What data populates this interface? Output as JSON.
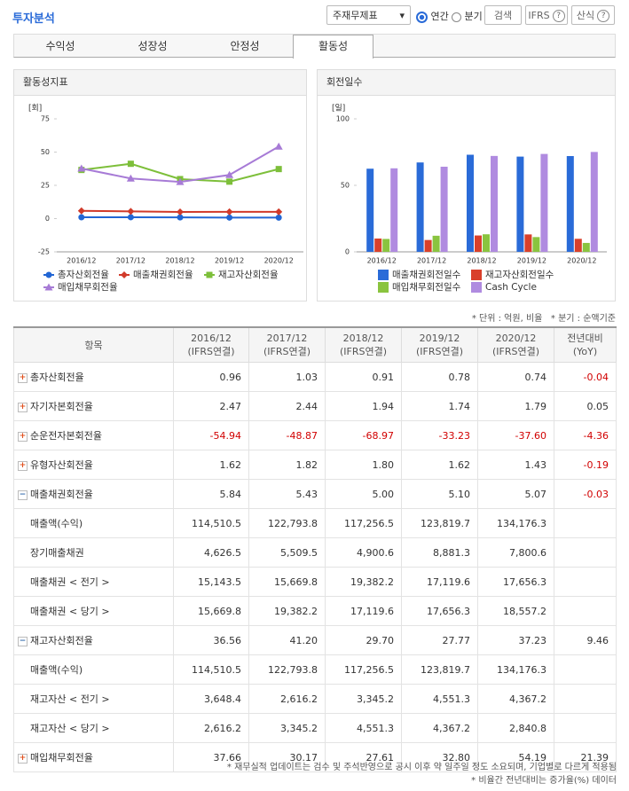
{
  "header": {
    "title": "투자분석",
    "select": "주재무제표",
    "radio_annual": "연간",
    "radio_quarter": "분기",
    "search": "검색",
    "ifrs": "IFRS",
    "formula": "산식"
  },
  "tabs": [
    "수익성",
    "성장성",
    "안정성",
    "활동성"
  ],
  "active_tab": 3,
  "chart_data": [
    {
      "type": "line",
      "title": "활동성지표",
      "unit": "[회]",
      "categories": [
        "2016/12",
        "2017/12",
        "2018/12",
        "2019/12",
        "2020/12"
      ],
      "series": [
        {
          "name": "총자산회전율",
          "color": "#2266d4",
          "marker": "circle",
          "values": [
            0.96,
            1.03,
            0.91,
            0.78,
            0.74
          ]
        },
        {
          "name": "매출채권회전율",
          "color": "#d13a2a",
          "marker": "diamond",
          "values": [
            5.84,
            5.43,
            5.0,
            5.1,
            5.07
          ]
        },
        {
          "name": "재고자산회전율",
          "color": "#7dbf3a",
          "marker": "square",
          "values": [
            36.56,
            41.2,
            29.7,
            27.77,
            37.23
          ]
        },
        {
          "name": "매입채무회전율",
          "color": "#a77bd6",
          "marker": "triangle",
          "values": [
            37.66,
            30.17,
            27.61,
            32.8,
            54.19
          ]
        }
      ],
      "ylim": [
        -25,
        75
      ],
      "yticks": [
        -25,
        0,
        25,
        50,
        75
      ]
    },
    {
      "type": "bar",
      "title": "회전일수",
      "unit": "[일]",
      "categories": [
        "2016/12",
        "2017/12",
        "2018/12",
        "2019/12",
        "2020/12"
      ],
      "series": [
        {
          "name": "매출채권회전일수",
          "color": "#2a6bd8",
          "values": [
            62.5,
            67.2,
            73.0,
            71.6,
            72.0
          ]
        },
        {
          "name": "재고자산회전일수",
          "color": "#d9402b",
          "values": [
            10.0,
            8.9,
            12.3,
            13.1,
            9.8
          ]
        },
        {
          "name": "매입채무회전일수",
          "color": "#8ac43f",
          "values": [
            9.7,
            12.1,
            13.2,
            11.1,
            6.7
          ]
        },
        {
          "name": "Cash Cycle",
          "color": "#b08be0",
          "values": [
            62.8,
            64.0,
            72.1,
            73.6,
            75.1
          ]
        }
      ],
      "ylim": [
        0,
        100
      ],
      "yticks": [
        0,
        50,
        100
      ]
    }
  ],
  "notes": {
    "unit": "* 단위 : 억원, 비율",
    "quarter": "* 분기 : 순액기준"
  },
  "table": {
    "header": [
      "항목",
      {
        "period": "2016/12",
        "basis": "(IFRS연결)"
      },
      {
        "period": "2017/12",
        "basis": "(IFRS연결)"
      },
      {
        "period": "2018/12",
        "basis": "(IFRS연결)"
      },
      {
        "period": "2019/12",
        "basis": "(IFRS연결)"
      },
      {
        "period": "2020/12",
        "basis": "(IFRS연결)"
      },
      {
        "period": "전년대비",
        "basis": "(YoY)"
      }
    ],
    "rows": [
      {
        "label": "총자산회전율",
        "toggle": "plus",
        "values": [
          "0.96",
          "1.03",
          "0.91",
          "0.78",
          "0.74"
        ],
        "yoy": "-0.04"
      },
      {
        "label": "자기자본회전율",
        "toggle": "plus",
        "values": [
          "2.47",
          "2.44",
          "1.94",
          "1.74",
          "1.79"
        ],
        "yoy": "0.05"
      },
      {
        "label": "순운전자본회전율",
        "toggle": "plus",
        "values": [
          "-54.94",
          "-48.87",
          "-68.97",
          "-33.23",
          "-37.60"
        ],
        "yoy": "-4.36"
      },
      {
        "label": "유형자산회전율",
        "toggle": "plus",
        "values": [
          "1.62",
          "1.82",
          "1.80",
          "1.62",
          "1.43"
        ],
        "yoy": "-0.19"
      },
      {
        "label": "매출채권회전율",
        "toggle": "minus",
        "values": [
          "5.84",
          "5.43",
          "5.00",
          "5.10",
          "5.07"
        ],
        "yoy": "-0.03"
      },
      {
        "label": "매출액(수익)",
        "values": [
          "114,510.5",
          "122,793.8",
          "117,256.5",
          "123,819.7",
          "134,176.3"
        ]
      },
      {
        "label": "장기매출채권",
        "values": [
          "4,626.5",
          "5,509.5",
          "4,900.6",
          "8,881.3",
          "7,800.6"
        ]
      },
      {
        "label": "매출채권 < 전기 >",
        "values": [
          "15,143.5",
          "15,669.8",
          "19,382.2",
          "17,119.6",
          "17,656.3"
        ]
      },
      {
        "label": "매출채권 < 당기 >",
        "values": [
          "15,669.8",
          "19,382.2",
          "17,119.6",
          "17,656.3",
          "18,557.2"
        ]
      },
      {
        "label": "재고자산회전율",
        "toggle": "minus",
        "values": [
          "36.56",
          "41.20",
          "29.70",
          "27.77",
          "37.23"
        ],
        "yoy": "9.46"
      },
      {
        "label": "매출액(수익)",
        "values": [
          "114,510.5",
          "122,793.8",
          "117,256.5",
          "123,819.7",
          "134,176.3"
        ]
      },
      {
        "label": "재고자산 < 전기 >",
        "values": [
          "3,648.4",
          "2,616.2",
          "3,345.2",
          "4,551.3",
          "4,367.2"
        ]
      },
      {
        "label": "재고자산 < 당기 >",
        "values": [
          "2,616.2",
          "3,345.2",
          "4,551.3",
          "4,367.2",
          "2,840.8"
        ]
      },
      {
        "label": "매입채무회전율",
        "toggle": "plus",
        "values": [
          "37.66",
          "30.17",
          "27.61",
          "32.80",
          "54.19"
        ],
        "yoy": "21.39"
      }
    ]
  },
  "footnotes": [
    "* 재무실적 업데이트는 검수 및 주석반영으로 공시 이후 약 일주일 정도 소요되며, 기업별로 다르게 적용됨",
    "* 비율간 전년대비는 증가율(%) 데이터"
  ]
}
